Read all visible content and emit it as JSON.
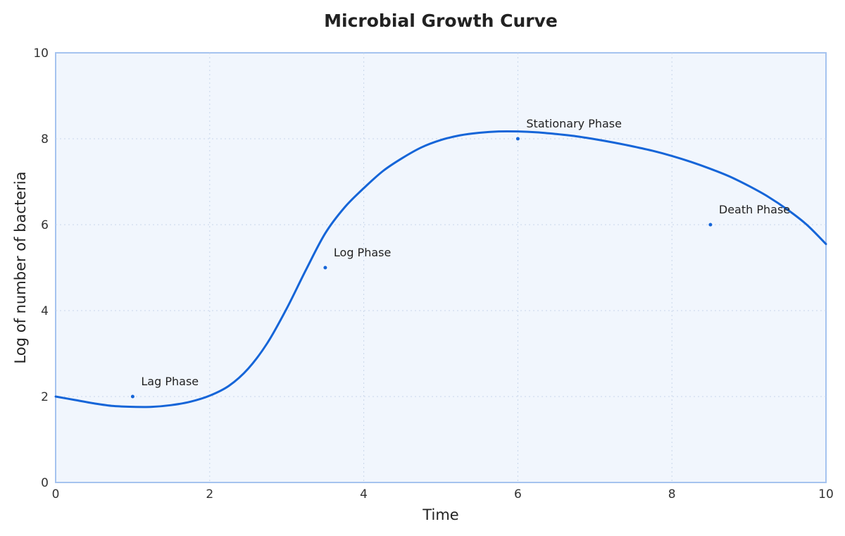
{
  "chart_data": {
    "type": "line",
    "title": "Microbial Growth Curve",
    "xlabel": "Time",
    "ylabel": "Log of number of bacteria",
    "xlim": [
      0,
      10
    ],
    "ylim": [
      0,
      10
    ],
    "x_ticks": [
      "0",
      "2",
      "4",
      "6",
      "8",
      "10"
    ],
    "y_ticks": [
      "0",
      "2",
      "4",
      "6",
      "8",
      "10"
    ],
    "grid": true,
    "series": [
      {
        "x": [
          0,
          0.25,
          0.5,
          0.75,
          1.0,
          1.25,
          1.5,
          1.75,
          2.0,
          2.25,
          2.5,
          2.75,
          3.0,
          3.25,
          3.5,
          3.75,
          4.0,
          4.25,
          4.5,
          4.75,
          5.0,
          5.25,
          5.5,
          5.75,
          6.0,
          6.25,
          6.5,
          6.75,
          7.0,
          7.25,
          7.5,
          7.75,
          8.0,
          8.25,
          8.5,
          8.75,
          9.0,
          9.25,
          9.5,
          9.75,
          10.0
        ],
        "y": [
          2.0,
          1.92,
          1.84,
          1.78,
          1.76,
          1.76,
          1.8,
          1.88,
          2.02,
          2.25,
          2.65,
          3.25,
          4.05,
          4.95,
          5.8,
          6.4,
          6.85,
          7.25,
          7.55,
          7.8,
          7.97,
          8.08,
          8.14,
          8.17,
          8.17,
          8.15,
          8.11,
          8.06,
          7.99,
          7.91,
          7.82,
          7.72,
          7.6,
          7.46,
          7.3,
          7.12,
          6.9,
          6.65,
          6.35,
          6.0,
          5.55
        ],
        "color": "#1565d8"
      }
    ],
    "annotations": [
      {
        "label": "Lag Phase",
        "x": 1.0,
        "y": 2
      },
      {
        "label": "Log Phase",
        "x": 3.5,
        "y": 5
      },
      {
        "label": "Stationary Phase",
        "x": 6.0,
        "y": 8
      },
      {
        "label": "Death Phase",
        "x": 8.5,
        "y": 6
      }
    ],
    "colors": {
      "line": "#1565d8",
      "plot_background": "#f1f6fd",
      "plot_border": "#a5c3ef",
      "marker": "#1565d8"
    }
  }
}
